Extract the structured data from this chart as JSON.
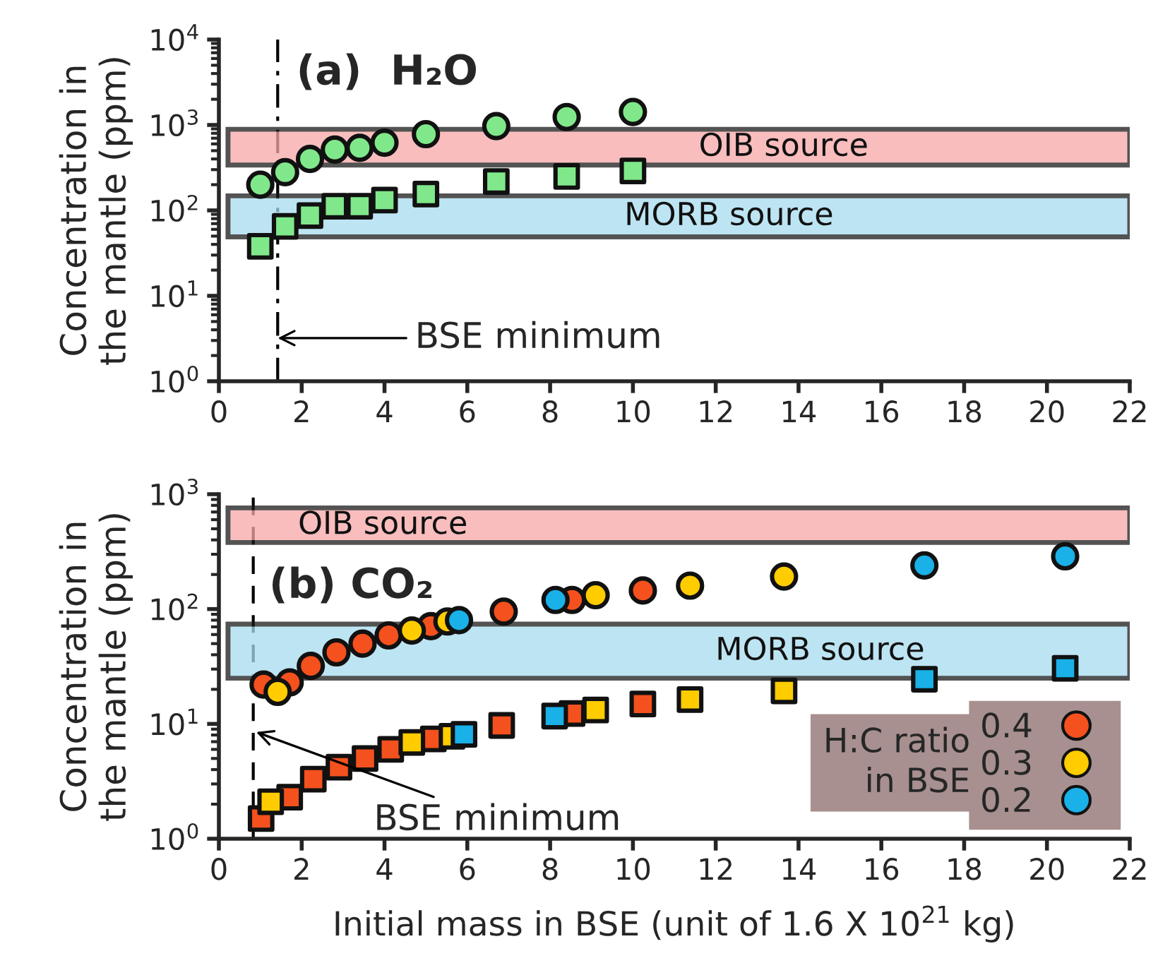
{
  "chart_data": [
    {
      "type": "scatter",
      "title": "(a)  H₂O",
      "ylabel": "Concentration in\nthe mantle (ppm)",
      "log": "y",
      "grid": false,
      "xlim": [
        0,
        22
      ],
      "xticks": [
        0,
        2,
        4,
        6,
        8,
        10,
        12,
        14,
        16,
        18,
        20,
        22
      ],
      "ylim": [
        1,
        10000
      ],
      "yticks": [
        {
          "value": 1,
          "label": "10$^{0}$"
        },
        {
          "value": 10,
          "label": "10$^{1}$"
        },
        {
          "value": 100,
          "label": "10$^{2}$"
        },
        {
          "value": 1000,
          "label": "10$^{3}$"
        },
        {
          "value": 10000,
          "label": "10$^{4}$"
        }
      ],
      "series": [
        {
          "marker": "circle",
          "color": "#80e88a",
          "x": [
            1.0,
            1.6,
            2.2,
            2.8,
            3.4,
            4.0,
            5.0,
            6.7,
            8.4,
            10.0
          ],
          "values": [
            200,
            280,
            400,
            515,
            540,
            620,
            780,
            970,
            1240,
            1420
          ]
        },
        {
          "marker": "square",
          "color": "#80e88a",
          "x": [
            1.0,
            1.6,
            2.2,
            2.8,
            3.4,
            4.0,
            5.0,
            6.7,
            8.4,
            10.0
          ],
          "values": [
            38,
            65,
            87,
            112,
            112,
            132,
            155,
            218,
            250,
            290
          ]
        }
      ],
      "bands": [
        {
          "axis": "y",
          "from": 340,
          "to": 890,
          "label": "OIB source",
          "color": "#f7a8a8"
        },
        {
          "axis": "y",
          "from": 49,
          "to": 148,
          "label": "MORB source",
          "color": "#a8dcee"
        }
      ],
      "ref_lines": [
        {
          "axis": "x",
          "value": 1.42,
          "line_style": "dashdot"
        }
      ],
      "annotations": [
        {
          "text": "BSE minimum",
          "x": 1.42,
          "y": 3.2
        }
      ]
    },
    {
      "type": "scatter",
      "title": "(b) CO₂",
      "xlabel": "Initial mass in BSE (unit of 1.6 X 10$^{21}$ kg)",
      "ylabel": "Concentration in\nthe mantle (ppm)",
      "log": "y",
      "grid": false,
      "legend": "bottom right",
      "legend_title": "H:C ratio\nin BSE",
      "xlim": [
        0,
        22
      ],
      "xticks": [
        0,
        2,
        4,
        6,
        8,
        10,
        12,
        14,
        16,
        18,
        20,
        22
      ],
      "ylim": [
        1,
        1000
      ],
      "yticks": [
        {
          "value": 1,
          "label": "10$^{0}$"
        },
        {
          "value": 10,
          "label": "10$^{1}$"
        },
        {
          "value": 100,
          "label": "10$^{2}$"
        },
        {
          "value": 1000,
          "label": "10$^{3}$"
        }
      ],
      "series": [
        {
          "name": "0.4",
          "marker": "circle",
          "color": "#f4511e",
          "x": [
            1.08,
            1.71,
            2.22,
            2.84,
            3.47,
            4.1,
            5.12,
            6.88,
            8.53,
            10.24
          ],
          "values": [
            22,
            23,
            32,
            42,
            50,
            59,
            71,
            95,
            120,
            145
          ]
        },
        {
          "name": "0.3",
          "marker": "circle",
          "color": "#ffcc00",
          "x": [
            1.42,
            4.66,
            5.52,
            9.1,
            11.38,
            13.65
          ],
          "values": [
            19,
            65,
            78,
            132,
            160,
            192
          ]
        },
        {
          "name": "0.2",
          "marker": "circle",
          "color": "#1ab0e8",
          "x": [
            5.8,
            8.13,
            17.04,
            20.44
          ],
          "values": [
            80,
            120,
            240,
            288
          ]
        },
        {
          "marker": "square",
          "color": "#f4511e",
          "x": [
            1.02,
            1.71,
            2.28,
            2.9,
            3.53,
            4.15,
            5.18,
            6.83,
            8.53,
            10.24
          ],
          "values": [
            1.5,
            2.3,
            3.3,
            4.2,
            5.0,
            6.0,
            7.4,
            9.7,
            12.3,
            14.9
          ]
        },
        {
          "marker": "square",
          "color": "#ffcc00",
          "x": [
            1.25,
            4.66,
            5.63,
            9.1,
            11.38,
            13.65
          ],
          "values": [
            2.1,
            6.9,
            7.8,
            13.2,
            16.3,
            19.4
          ]
        },
        {
          "marker": "square",
          "color": "#1ab0e8",
          "x": [
            5.92,
            8.11,
            17.04,
            20.44
          ],
          "values": [
            8.1,
            11.7,
            24.5,
            30.5
          ]
        }
      ],
      "bands": [
        {
          "axis": "y",
          "from": 380,
          "to": 760,
          "label": "OIB source",
          "color": "#f7a8a8"
        },
        {
          "axis": "y",
          "from": 25,
          "to": 74,
          "label": "MORB source",
          "color": "#a8dcee"
        }
      ],
      "ref_lines": [
        {
          "axis": "x",
          "value": 0.83,
          "line_style": "dashed"
        }
      ],
      "annotations": [
        {
          "text": "BSE minimum",
          "x": 0.9,
          "y": 8.5
        }
      ]
    }
  ]
}
